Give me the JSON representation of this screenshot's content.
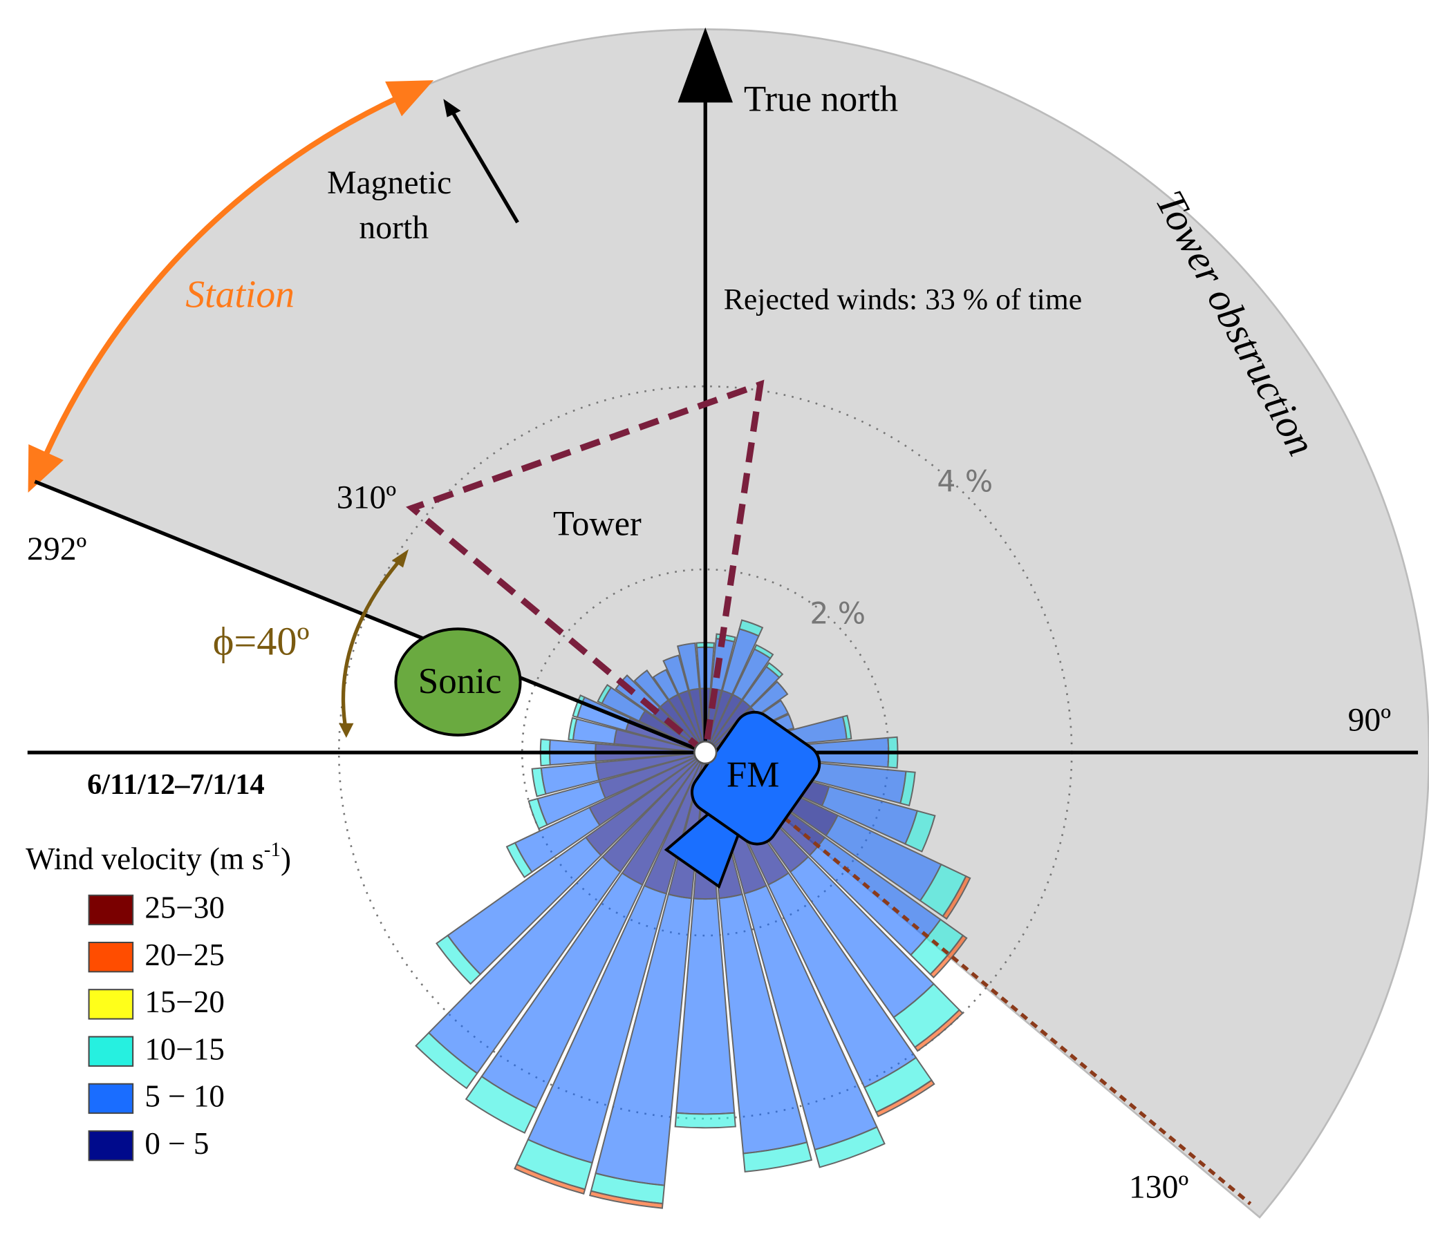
{
  "chart_data": {
    "type": "windrose",
    "directions": [
      0,
      10,
      20,
      30,
      40,
      50,
      60,
      70,
      80,
      90,
      100,
      110,
      120,
      130,
      140,
      150,
      160,
      170,
      180,
      190,
      200,
      210,
      220,
      230,
      240,
      250,
      260,
      270,
      280,
      290,
      300,
      310,
      320,
      330,
      340,
      350
    ],
    "series": [
      {
        "name": "0 − 5",
        "color": "#000a8c",
        "values": [
          0.7,
          0.7,
          0.7,
          0.7,
          0.7,
          0.7,
          0.7,
          0.7,
          0.8,
          1.0,
          1.2,
          1.4,
          1.6,
          1.6,
          1.6,
          1.6,
          1.6,
          1.6,
          1.6,
          1.6,
          1.6,
          1.6,
          1.6,
          1.6,
          1.4,
          1.2,
          1.2,
          1.2,
          1.0,
          0.9,
          0.8,
          0.7,
          0.7,
          0.7,
          0.7,
          0.7
        ]
      },
      {
        "name": "5 − 10",
        "color": "#1a6dff",
        "values": [
          0.45,
          0.55,
          0.7,
          0.55,
          0.45,
          0.4,
          0.3,
          0.3,
          0.75,
          1.0,
          1.0,
          1.0,
          1.25,
          1.55,
          1.95,
          2.45,
          2.9,
          2.8,
          2.35,
          3.15,
          3.05,
          2.7,
          2.7,
          1.85,
          0.9,
          0.7,
          0.6,
          0.5,
          0.45,
          0.55,
          0.45,
          0.5,
          0.4,
          0.3,
          0.4,
          0.5
        ]
      },
      {
        "name": "10−15",
        "color": "#26f0e0",
        "values": [
          0.05,
          0.05,
          0.1,
          0.05,
          0.05,
          0,
          0,
          0,
          0.05,
          0.1,
          0.1,
          0.2,
          0.3,
          0.3,
          0.4,
          0.3,
          0.2,
          0.2,
          0.15,
          0.2,
          0.3,
          0.3,
          0.2,
          0.15,
          0.1,
          0.1,
          0.1,
          0.1,
          0.05,
          0.05,
          0.05,
          0,
          0,
          0,
          0,
          0
        ]
      },
      {
        "name": "15−20",
        "color": "#ffff1a",
        "values": [
          0,
          0,
          0,
          0,
          0,
          0,
          0,
          0,
          0,
          0,
          0,
          0,
          0,
          0,
          0,
          0,
          0,
          0,
          0,
          0,
          0,
          0,
          0,
          0,
          0,
          0,
          0,
          0,
          0,
          0,
          0,
          0,
          0,
          0,
          0,
          0
        ]
      },
      {
        "name": "20−25",
        "color": "#ff4d00",
        "values": [
          0,
          0,
          0,
          0,
          0,
          0,
          0,
          0,
          0,
          0,
          0,
          0,
          0.05,
          0.05,
          0.05,
          0.05,
          0,
          0,
          0,
          0.05,
          0.05,
          0,
          0,
          0,
          0,
          0,
          0,
          0,
          0,
          0,
          0,
          0,
          0,
          0,
          0,
          0
        ]
      },
      {
        "name": "25−30",
        "color": "#7a0000",
        "values": [
          0,
          0,
          0,
          0,
          0,
          0,
          0,
          0,
          0,
          0,
          0,
          0,
          0,
          0,
          0,
          0,
          0,
          0,
          0,
          0,
          0,
          0,
          0,
          0,
          0,
          0,
          0,
          0,
          0,
          0,
          0,
          0,
          0,
          0,
          0,
          0
        ]
      }
    ],
    "rlim": [
      0,
      5
    ],
    "rticks": [
      {
        "value": 2,
        "label": "2 %"
      },
      {
        "value": 4,
        "label": "4 %"
      }
    ],
    "legend_title": [
      "Wind velocity (m s",
      "-1",
      ")"
    ],
    "period": "6/11/12–7/1/14",
    "annotations": {
      "true_north": "True north",
      "magnetic_north": [
        "Magnetic",
        "north"
      ],
      "station": "Station",
      "tower_obstruction": "Tower obstruction",
      "rejected": "Rejected winds: 33 % of time",
      "tower": "Tower",
      "phi": "ϕ=40º",
      "sonic": "Sonic",
      "fm": "FM",
      "angle_310": "310º",
      "angle_292": "292º",
      "angle_90": "90º",
      "angle_130": "130º"
    }
  }
}
